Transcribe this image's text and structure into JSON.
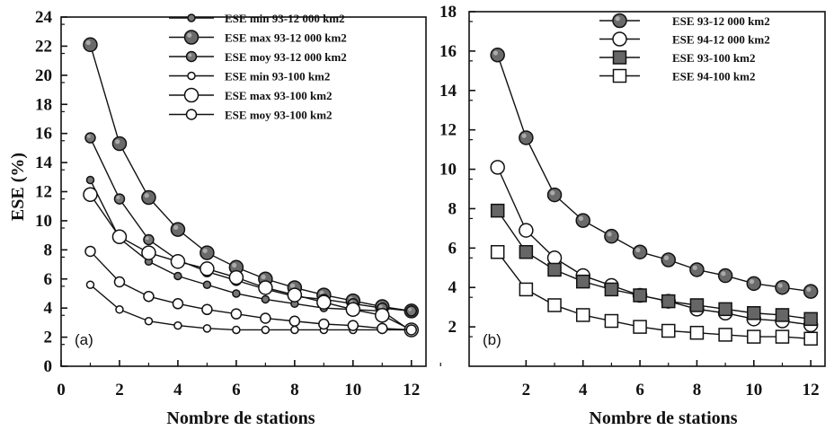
{
  "chart_data": [
    {
      "type": "line",
      "panel_label": "(a)",
      "xlabel": "Nombre de stations",
      "ylabel": "ESE (%)",
      "xlim": [
        0,
        12.5
      ],
      "ylim": [
        0,
        24
      ],
      "xticks": [
        0,
        2,
        4,
        6,
        8,
        10,
        12
      ],
      "yticks": [
        0,
        2,
        4,
        6,
        8,
        10,
        12,
        14,
        16,
        18,
        20,
        22,
        24
      ],
      "grid": false,
      "legend_position": "top-right",
      "x": [
        1,
        2,
        3,
        4,
        5,
        6,
        7,
        8,
        9,
        10,
        11,
        12
      ],
      "series": [
        {
          "name": "ESE min 93-12 000 km2",
          "marker": "dot-gray-small",
          "values": [
            12.8,
            8.8,
            7.2,
            6.2,
            5.6,
            5.0,
            4.6,
            4.3,
            4.0,
            3.9,
            3.8,
            2.4
          ]
        },
        {
          "name": "ESE max 93-12 000 km2",
          "marker": "dot-gray-large",
          "values": [
            22.1,
            15.3,
            11.6,
            9.4,
            7.8,
            6.8,
            6.0,
            5.4,
            4.9,
            4.5,
            4.1,
            3.8
          ]
        },
        {
          "name": "ESE moy 93-12 000 km2",
          "marker": "dot-gray-medium",
          "values": [
            15.7,
            11.5,
            8.7,
            7.3,
            6.5,
            5.9,
            5.3,
            4.8,
            4.6,
            4.3,
            4.0,
            3.8
          ]
        },
        {
          "name": "ESE min 93-100 km2",
          "marker": "circle-open-small",
          "values": [
            5.6,
            3.9,
            3.1,
            2.8,
            2.6,
            2.5,
            2.5,
            2.5,
            2.5,
            2.5,
            2.5,
            2.5
          ]
        },
        {
          "name": "ESE max 93-100 km2",
          "marker": "circle-open-large",
          "values": [
            11.8,
            8.9,
            7.8,
            7.2,
            6.7,
            6.1,
            5.4,
            4.9,
            4.4,
            3.9,
            3.5,
            2.5
          ]
        },
        {
          "name": "ESE moy 93-100 km2",
          "marker": "circle-open-medium",
          "values": [
            7.9,
            5.8,
            4.8,
            4.3,
            3.9,
            3.6,
            3.3,
            3.1,
            2.9,
            2.8,
            2.6,
            2.5
          ]
        }
      ]
    },
    {
      "type": "line",
      "panel_label": "(b)",
      "xlabel": "Nombre de stations",
      "ylabel": "",
      "xlim": [
        0,
        12.5
      ],
      "ylim": [
        0,
        18
      ],
      "xticks": [
        2,
        4,
        6,
        8,
        10,
        12
      ],
      "yticks": [
        2,
        4,
        6,
        8,
        10,
        12,
        14,
        16,
        18
      ],
      "grid": false,
      "legend_position": "top-right",
      "x": [
        1,
        2,
        3,
        4,
        5,
        6,
        7,
        8,
        9,
        10,
        11,
        12
      ],
      "series": [
        {
          "name": "ESE 93-12 000 km2",
          "marker": "dot-gray-large",
          "values": [
            15.8,
            11.6,
            8.7,
            7.4,
            6.6,
            5.8,
            5.4,
            4.9,
            4.6,
            4.2,
            4.0,
            3.8
          ]
        },
        {
          "name": "ESE 94-12 000 km2",
          "marker": "circle-open-large",
          "values": [
            10.1,
            6.9,
            5.5,
            4.6,
            4.1,
            3.6,
            3.3,
            2.9,
            2.7,
            2.4,
            2.3,
            2.1
          ]
        },
        {
          "name": "ESE 93-100 km2",
          "marker": "square-gray",
          "values": [
            7.9,
            5.8,
            4.9,
            4.3,
            3.9,
            3.6,
            3.3,
            3.1,
            2.9,
            2.7,
            2.6,
            2.4
          ]
        },
        {
          "name": "ESE 94-100 km2",
          "marker": "square-open",
          "values": [
            5.8,
            3.9,
            3.1,
            2.6,
            2.3,
            2.0,
            1.8,
            1.7,
            1.6,
            1.5,
            1.5,
            1.4
          ]
        }
      ]
    }
  ]
}
